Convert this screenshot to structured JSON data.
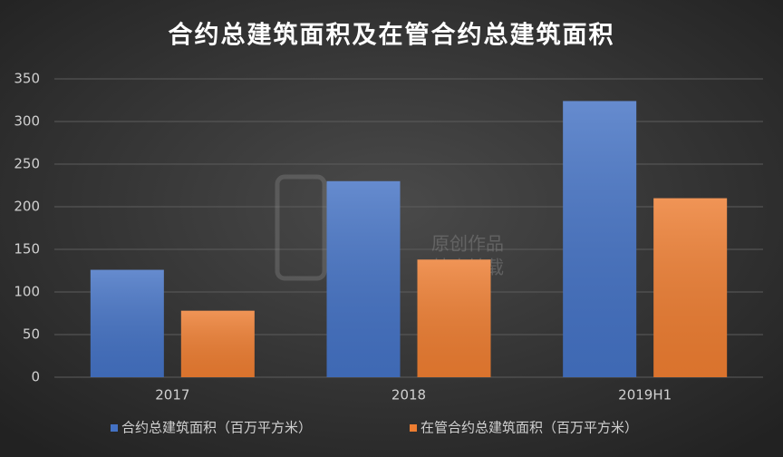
{
  "chart_data": {
    "type": "bar",
    "title": "合约总建筑面积及在管合约总建筑面积",
    "categories": [
      "2017",
      "2018",
      "2019H1"
    ],
    "series": [
      {
        "name": "合约总建筑面积（百万平方米）",
        "color": "#4472c4",
        "values": [
          126,
          230,
          324
        ]
      },
      {
        "name": "在管合约总建筑面积（百万平方米）",
        "color": "#ed7d31",
        "values": [
          78,
          138,
          210
        ]
      }
    ],
    "ylim": [
      0,
      350
    ],
    "yticks": [
      0,
      50,
      100,
      150,
      200,
      250,
      300,
      350
    ],
    "grid": true,
    "legend": "bottom",
    "watermark": [
      "原创作品",
      "禁止转载"
    ]
  }
}
